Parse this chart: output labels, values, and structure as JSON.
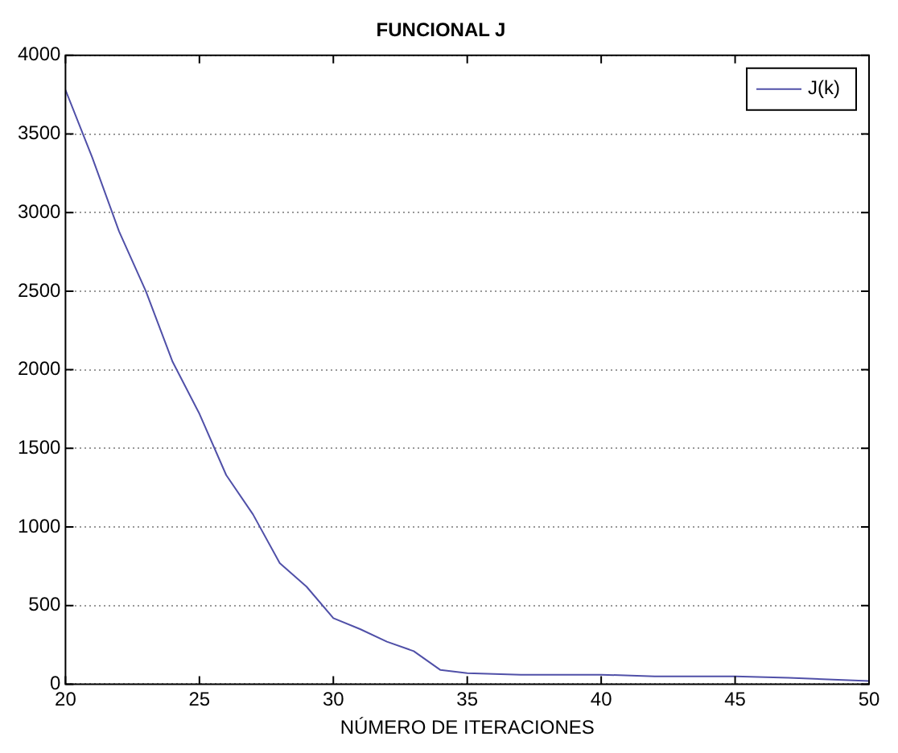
{
  "chart_data": {
    "type": "line",
    "title": "FUNCIONAL J",
    "xlabel": "NÚMERO DE ITERACIONES",
    "x": [
      20,
      21,
      22,
      23,
      24,
      25,
      26,
      27,
      28,
      29,
      30,
      31,
      32,
      33,
      34,
      35,
      37,
      40,
      42,
      45,
      47,
      50
    ],
    "series": [
      {
        "name": "J(k)",
        "color": "#5050a8",
        "values": [
          3780,
          3350,
          2880,
          2500,
          2050,
          1720,
          1330,
          1080,
          770,
          620,
          420,
          350,
          270,
          210,
          90,
          70,
          60,
          60,
          50,
          50,
          40,
          20
        ]
      }
    ],
    "xlim": [
      20,
      50
    ],
    "xticks": [
      20,
      25,
      30,
      35,
      40,
      45,
      50
    ],
    "ylim": [
      0,
      4000
    ],
    "yticks": [
      0,
      500,
      1000,
      1500,
      2000,
      2500,
      3000,
      3500,
      4000
    ],
    "grid": "y",
    "legend": "top right",
    "marker": "none",
    "line_style": "solid"
  }
}
